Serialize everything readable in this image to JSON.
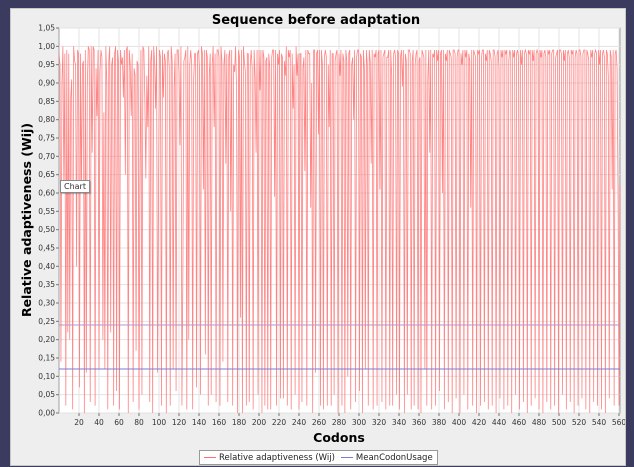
{
  "chart_data": {
    "type": "line",
    "title": "Sequence before adaptation",
    "xlabel": "Codons",
    "ylabel": "Relative adaptiveness (Wij)",
    "xlim": [
      0,
      561
    ],
    "ylim": [
      0,
      1.05
    ],
    "x_ticks": [
      "20",
      "40",
      "60",
      "80",
      "100",
      "120",
      "140",
      "160",
      "180",
      "200",
      "220",
      "240",
      "260",
      "280",
      "300",
      "320",
      "340",
      "360",
      "380",
      "400",
      "420",
      "440",
      "460",
      "480",
      "500",
      "520",
      "540",
      "560"
    ],
    "y_ticks": [
      "0,00",
      "0,05",
      "0,10",
      "0,15",
      "0,20",
      "0,25",
      "0,30",
      "0,35",
      "0,40",
      "0,45",
      "0,50",
      "0,55",
      "0,60",
      "0,65",
      "0,70",
      "0,75",
      "0,80",
      "0,85",
      "0,90",
      "0,95",
      "1,00",
      "1,05"
    ],
    "grid": true,
    "legend_position": "bottom",
    "series": [
      {
        "name": "Relative adaptiveness (Wij)",
        "color": "#ff6f6f",
        "n_points": 561,
        "values": [
          0.98,
          0.95,
          0.14,
          0.9,
          1.0,
          0.61,
          0.98,
          0.02,
          0.99,
          0.22,
          0.98,
          0.2,
          0.86,
          0.91,
          0.01,
          1.0,
          0.96,
          0.95,
          0.4,
          0.99,
          0.98,
          0.07,
          0.98,
          0.6,
          0.95,
          0.96,
          0.0,
          0.99,
          0.11,
          0.89,
          1.0,
          0.99,
          0.03,
          1.0,
          0.71,
          1.0,
          0.99,
          0.02,
          0.94,
          0.81,
          0.99,
          0.12,
          0.93,
          0.99,
          0.97,
          0.2,
          0.82,
          0.12,
          1.0,
          0.9,
          0.01,
          0.96,
          1.0,
          0.22,
          0.95,
          0.97,
          0.02,
          0.98,
          1.0,
          0.06,
          0.99,
          0.95,
          0.01,
          0.99,
          0.95,
          0.97,
          0.86,
          0.99,
          0.65,
          0.99,
          1.0,
          0.0,
          0.99,
          0.95,
          0.81,
          0.98,
          0.03,
          0.94,
          0.92,
          0.17,
          0.96,
          0.95,
          0.01,
          0.62,
          0.99,
          0.05,
          1.0,
          0.99,
          0.85,
          0.64,
          0.92,
          0.78,
          1.0,
          0.03,
          0.96,
          0.99,
          0.0,
          1.0,
          0.96,
          0.83,
          1.0,
          0.11,
          0.61,
          0.99,
          0.97,
          0.02,
          0.99,
          0.86,
          0.98,
          0.96,
          0.0,
          0.98,
          0.99,
          0.94,
          0.02,
          1.0,
          0.96,
          0.12,
          0.89,
          0.98,
          0.06,
          0.99,
          0.99,
          0.93,
          0.73,
          1.0,
          0.02,
          0.4,
          0.96,
          0.97,
          0.99,
          0.01,
          1.0,
          0.2,
          0.95,
          0.99,
          0.95,
          0.01,
          0.91,
          0.98,
          0.98,
          0.07,
          0.98,
          0.99,
          0.94,
          0.05,
          1.0,
          0.98,
          0.61,
          0.99,
          0.16,
          0.99,
          0.97,
          0.02,
          0.92,
          0.98,
          0.05,
          0.95,
          1.0,
          0.78,
          0.98,
          0.03,
          0.99,
          0.99,
          0.97,
          0.02,
          1.0,
          0.96,
          0.14,
          0.95,
          0.99,
          0.68,
          0.98,
          0.03,
          0.97,
          0.99,
          0.55,
          0.99,
          0.02,
          0.95,
          0.93,
          1.0,
          0.88,
          0.0,
          0.99,
          0.97,
          0.26,
          0.99,
          0.0,
          1.0,
          0.96,
          0.93,
          0.02,
          0.98,
          0.98,
          0.03,
          0.95,
          0.99,
          0.94,
          0.01,
          0.99,
          0.92,
          0.71,
          0.99,
          0.05,
          0.99,
          0.88,
          0.99,
          0.0,
          0.99,
          0.97,
          0.02,
          0.96,
          0.97,
          0.01,
          0.98,
          0.94,
          0.01,
          0.97,
          0.99,
          0.99,
          0.59,
          0.99,
          0.02,
          0.98,
          0.95,
          0.99,
          0.04,
          0.98,
          0.97,
          0.04,
          0.96,
          0.92,
          1.0,
          0.02,
          0.99,
          0.97,
          0.99,
          0.01,
          0.98,
          0.83,
          0.95,
          0.05,
          1.0,
          0.92,
          0.98,
          0.01,
          0.98,
          0.98,
          0.03,
          0.94,
          0.97,
          0.66,
          0.99,
          0.02,
          0.99,
          0.98,
          0.98,
          0.56,
          0.9,
          0.0,
          0.99,
          0.99,
          0.11,
          0.98,
          0.99,
          0.76,
          0.99,
          0.02,
          0.99,
          0.95,
          0.01,
          0.97,
          0.99,
          0.97,
          0.02,
          0.95,
          0.78,
          0.99,
          0.02,
          0.98,
          0.98,
          0.05,
          0.96,
          0.98,
          0.99,
          0.0,
          0.98,
          0.92,
          0.99,
          0.02,
          0.98,
          0.96,
          0.0,
          0.99,
          0.96,
          0.1,
          0.98,
          0.99,
          0.01,
          0.95,
          0.97,
          0.8,
          0.99,
          0.03,
          0.97,
          0.99,
          0.99,
          0.06,
          0.98,
          0.97,
          0.0,
          0.99,
          0.94,
          0.12,
          0.99,
          0.95,
          0.02,
          0.99,
          0.96,
          0.68,
          0.99,
          0.01,
          0.98,
          0.97,
          0.99,
          0.02,
          0.98,
          0.99,
          0.61,
          0.99,
          0.03,
          0.97,
          0.98,
          0.99,
          0.01,
          0.97,
          0.97,
          0.99,
          0.02,
          0.99,
          0.92,
          0.02,
          0.98,
          0.99,
          0.97,
          0.05,
          0.99,
          0.98,
          0.01,
          0.97,
          0.99,
          0.89,
          0.99,
          0.0,
          0.98,
          0.96,
          0.05,
          0.99,
          0.99,
          0.98,
          0.01,
          0.96,
          0.99,
          0.02,
          0.95,
          0.98,
          0.99,
          0.01,
          0.96,
          0.97,
          0.0,
          0.99,
          0.98,
          0.97,
          0.12,
          0.99,
          0.02,
          0.91,
          0.99,
          0.71,
          0.99,
          0.01,
          0.98,
          0.97,
          0.99,
          0.02,
          0.99,
          0.96,
          0.99,
          0.06,
          0.98,
          0.99,
          0.6,
          0.99,
          0.01,
          0.98,
          0.96,
          0.99,
          0.03,
          0.99,
          0.98,
          0.97,
          0.0,
          0.99,
          0.99,
          0.98,
          0.04,
          0.97,
          0.99,
          0.99,
          0.0,
          0.98,
          0.95,
          0.99,
          0.05,
          0.99,
          0.97,
          0.99,
          0.01,
          0.98,
          0.96,
          0.56,
          0.99,
          0.02,
          0.99,
          0.98,
          0.97,
          0.0,
          0.99,
          0.98,
          0.99,
          0.02,
          0.97,
          0.99,
          0.99,
          0.03,
          0.98,
          0.96,
          0.99,
          0.01,
          0.99,
          0.98,
          0.96,
          0.02,
          0.99,
          0.99,
          0.97,
          0.0,
          0.98,
          0.99,
          0.94,
          0.04,
          0.99,
          0.97,
          0.99,
          0.01,
          0.99,
          0.98,
          0.99,
          0.02,
          0.96,
          0.99,
          0.98,
          0.0,
          0.99,
          0.97,
          0.99,
          0.05,
          0.98,
          0.99,
          0.97,
          0.01,
          0.99,
          0.95,
          0.99,
          0.03,
          0.98,
          0.99,
          0.98,
          0.0,
          0.99,
          0.98,
          0.99,
          0.02,
          0.99,
          0.96,
          0.99,
          0.04,
          0.98,
          0.99,
          0.98,
          0.01,
          0.99,
          0.97,
          0.99,
          0.0,
          0.98,
          0.99,
          0.97,
          0.03,
          0.99,
          0.98,
          0.99,
          0.01,
          0.98,
          0.99,
          0.99,
          0.02,
          0.97,
          0.98,
          0.99,
          0.0,
          0.99,
          0.99,
          0.98,
          0.05,
          0.99,
          0.96,
          0.99,
          0.01,
          0.98,
          0.99,
          0.97,
          0.03,
          0.99,
          0.98,
          0.99,
          0.0,
          0.97,
          0.99,
          0.98,
          0.02,
          0.99,
          0.99,
          0.97,
          0.04,
          0.98,
          0.99,
          0.99,
          0.01,
          0.99,
          0.98,
          0.96,
          0.0,
          0.99,
          0.97,
          0.99,
          0.03,
          0.98,
          0.99,
          0.98,
          0.02,
          0.99,
          0.95,
          0.99,
          0.01,
          0.98,
          0.99,
          0.97,
          0.0,
          0.99,
          0.98,
          0.92,
          0.04,
          0.99,
          0.97,
          0.61,
          0.99,
          0.02,
          0.98,
          0.99,
          0.94,
          0.6,
          0.02,
          0.62
        ]
      },
      {
        "name": "MeanCodonUsage",
        "color": "#7b7bd6",
        "type": "horizontal",
        "value": 0.12
      },
      {
        "color": "#b894c8",
        "type": "horizontal",
        "value": 0.24
      }
    ]
  },
  "tooltip": {
    "text": "Chart"
  },
  "legend": {
    "items": [
      {
        "label": "Relative adaptiveness (Wij)",
        "color": "#ff6f6f"
      },
      {
        "label": "MeanCodonUsage",
        "color": "#7b7bd6"
      }
    ]
  }
}
